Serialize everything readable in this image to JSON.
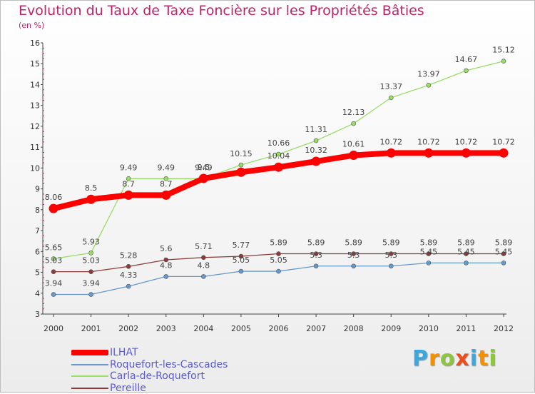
{
  "chart_data": {
    "type": "line",
    "title": "Evolution du Taux de Taxe Foncière sur les Propriétés Bâties",
    "subtitle": "(en %)",
    "x": [
      "2000",
      "2001",
      "2002",
      "2003",
      "2004",
      "2005",
      "2006",
      "2007",
      "2008",
      "2009",
      "2010",
      "2011",
      "2012"
    ],
    "ylim": [
      3,
      16
    ],
    "yticks": [
      "3",
      "4",
      "5",
      "6",
      "7",
      "8",
      "9",
      "10",
      "11",
      "12",
      "13",
      "14",
      "15",
      "16"
    ],
    "grid": false,
    "legend_position": "bottom-left",
    "series": [
      {
        "name": "ILHAT",
        "color": "#ff0000",
        "values": [
          8.06,
          8.5,
          8.7,
          8.7,
          9.5,
          9.8,
          10.04,
          10.32,
          10.61,
          10.72,
          10.72,
          10.72,
          10.72
        ],
        "labels": [
          "8.06",
          "8.5",
          "8.7",
          "8.7",
          "9.5",
          "",
          "10.04",
          "10.32",
          "10.61",
          "10.72",
          "10.72",
          "10.72",
          "10.72"
        ]
      },
      {
        "name": "Roquefort-les-Cascades",
        "color": "#6699cc",
        "values": [
          3.94,
          3.94,
          4.33,
          4.8,
          4.8,
          5.05,
          5.05,
          5.3,
          5.3,
          5.3,
          5.45,
          5.45,
          5.45
        ],
        "labels": [
          "3.94",
          "3.94",
          "4.33",
          "4.8",
          "4.8",
          "5.05",
          "5.05",
          "5.3",
          "5.3",
          "5.3",
          "5.45",
          "5.45",
          "5.45"
        ]
      },
      {
        "name": "Carla-de-Roquefort",
        "color": "#99dd66",
        "values": [
          5.65,
          5.93,
          9.49,
          9.49,
          9.49,
          10.15,
          10.66,
          11.31,
          12.13,
          13.37,
          13.97,
          14.67,
          15.12
        ],
        "labels": [
          "5.65",
          "5.93",
          "9.49",
          "9.49",
          "9.49",
          "10.15",
          "10.66",
          "11.31",
          "12.13",
          "13.37",
          "13.97",
          "14.67",
          "15.12"
        ]
      },
      {
        "name": "Pereille",
        "color": "#8b3a3a",
        "values": [
          5.03,
          5.03,
          5.28,
          5.6,
          5.71,
          5.77,
          5.89,
          5.89,
          5.89,
          5.89,
          5.89,
          5.89,
          5.89
        ],
        "labels": [
          "5.03",
          "5.03",
          "5.28",
          "5.6",
          "5.71",
          "5.77",
          "5.89",
          "5.89",
          "5.89",
          "5.89",
          "5.89",
          "5.89",
          "5.89"
        ]
      }
    ]
  },
  "legend": {
    "items": [
      {
        "label": "ILHAT",
        "color": "#ff0000"
      },
      {
        "label": "Roquefort-les-Cascades",
        "color": "#6699cc"
      },
      {
        "label": "Carla-de-Roquefort",
        "color": "#99dd66"
      },
      {
        "label": "Pereille",
        "color": "#8b3a3a"
      }
    ]
  },
  "logo": {
    "text": "Proxiti",
    "letters": [
      {
        "ch": "P",
        "color": "#3aa7e0"
      },
      {
        "ch": "r",
        "color": "#f39200"
      },
      {
        "ch": "o",
        "color": "#8cc63f"
      },
      {
        "ch": "x",
        "color": "#e94e1b"
      },
      {
        "ch": "i",
        "color": "#3aa7e0"
      },
      {
        "ch": "t",
        "color": "#f39200"
      },
      {
        "ch": "i",
        "color": "#8cc63f"
      }
    ]
  }
}
